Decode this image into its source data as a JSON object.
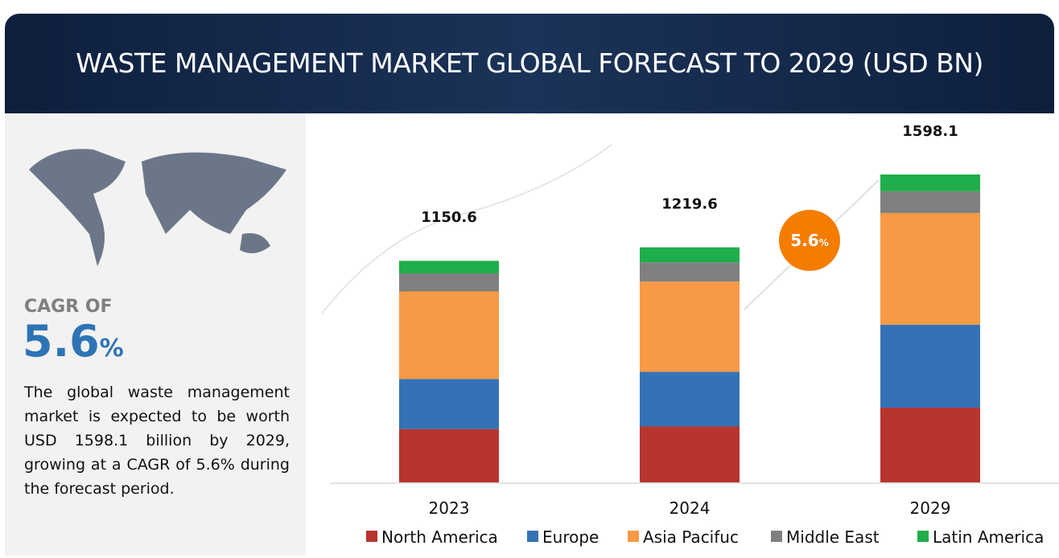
{
  "header": {
    "title": "WASTE MANAGEMENT MARKET GLOBAL FORECAST TO 2029 (USD BN)"
  },
  "side": {
    "cagr_label": "CAGR OF",
    "cagr_value": "5.6",
    "cagr_unit": "%",
    "description": "The global waste management market is expected to be worth USD 1598.1 billion by 2029, growing at a CAGR of 5.6% during the forecast period."
  },
  "badge": {
    "value": "5.6",
    "unit": "%"
  },
  "chart_data": {
    "type": "stacked_bar",
    "categories": [
      "2023",
      "2024",
      "2029"
    ],
    "totals": [
      1150.6,
      1219.6,
      1598.1
    ],
    "series": [
      {
        "name": "North America",
        "color": "#b7352f",
        "values": [
          277,
          290,
          388
        ]
      },
      {
        "name": "Europe",
        "color": "#3572b5",
        "values": [
          260,
          284,
          430
        ]
      },
      {
        "name": "Asia Pacifuc",
        "color": "#f89a45",
        "values": [
          454,
          468,
          580
        ]
      },
      {
        "name": "Middle East",
        "color": "#808080",
        "values": [
          94,
          100,
          113
        ]
      },
      {
        "name": "Latin America",
        "color": "#1fae4b",
        "values": [
          65,
          78,
          87
        ]
      }
    ]
  }
}
